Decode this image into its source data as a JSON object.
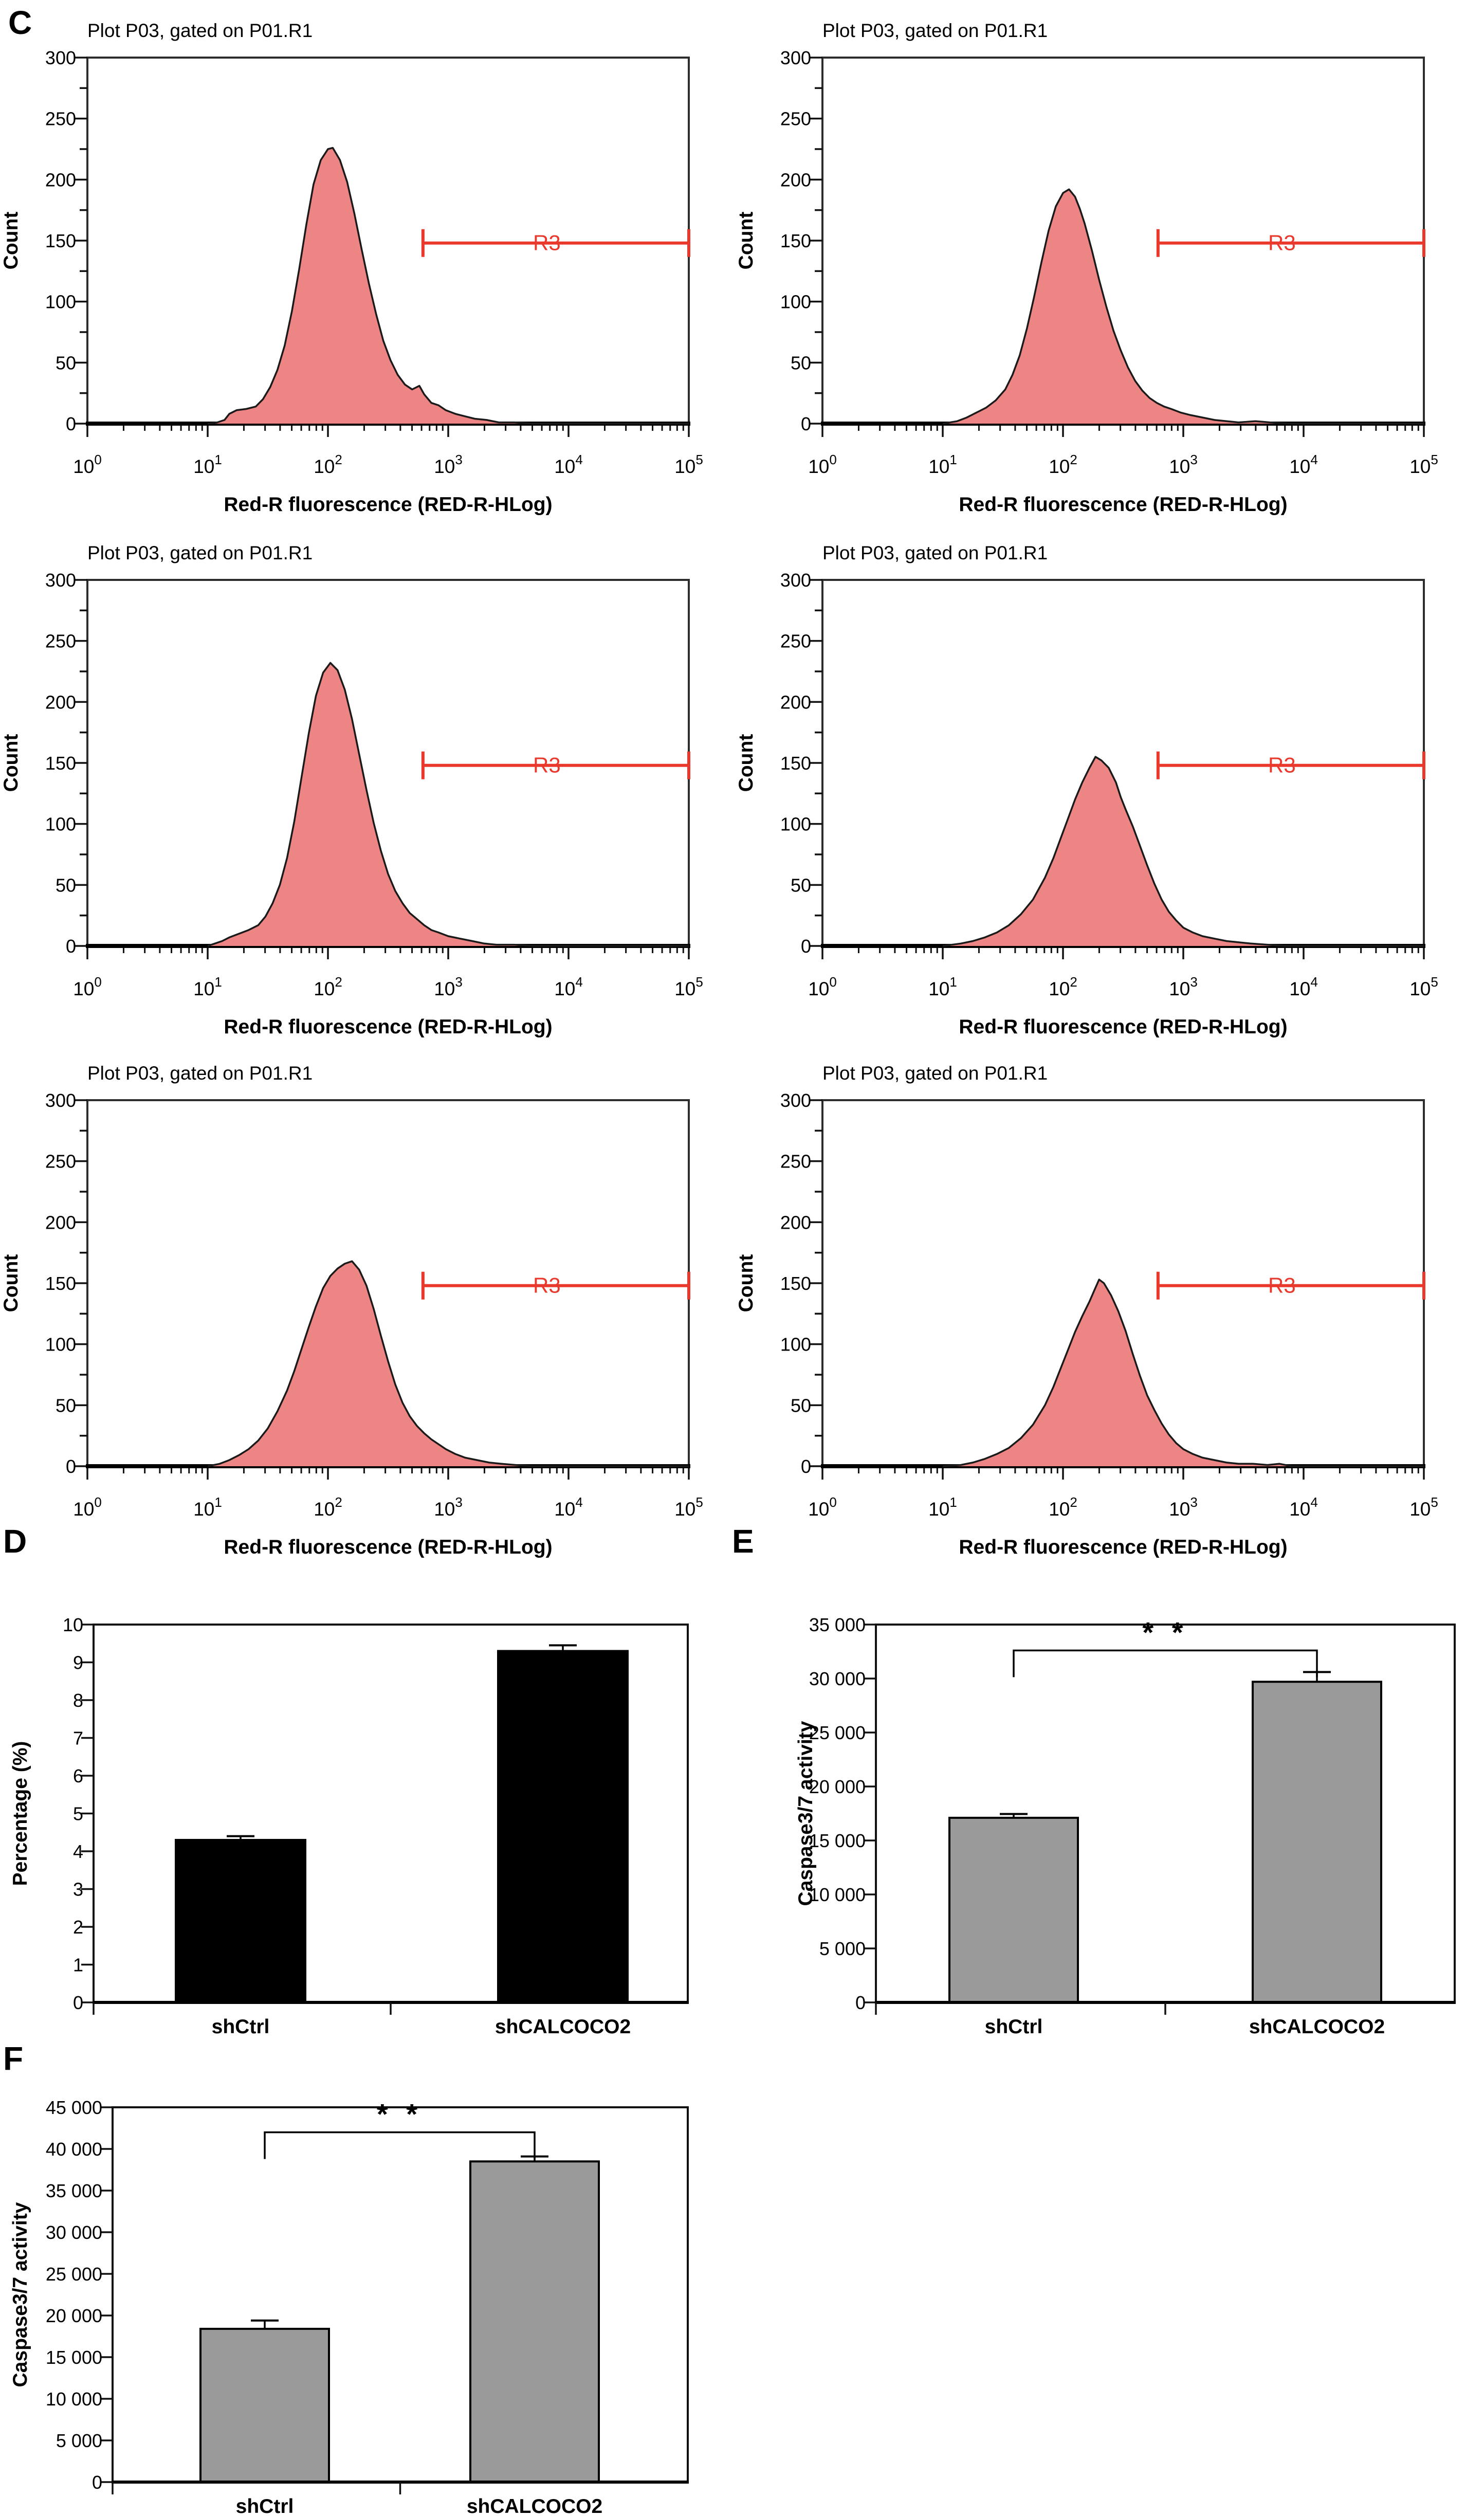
{
  "figure": {
    "panels": {
      "c": "C",
      "d": "D",
      "e": "E",
      "f": "F"
    }
  },
  "chart_data": {
    "flow_histograms": {
      "type": "area",
      "title": "Plot P03, gated on P01.R1",
      "xlabel": "Red-R fluorescence (RED-R-HLog)",
      "ylabel": "Count",
      "ylim": [
        0,
        300
      ],
      "y_tick_step": 50,
      "y_minor_step": 25,
      "x_log_decades": [
        0,
        1,
        2,
        3,
        4,
        5
      ],
      "fill_color": "#ee8585",
      "outline_color": "#1a1a1a",
      "gate": {
        "label": "R3",
        "from_log10": 2.79,
        "to_log10": 5.0,
        "count": 148,
        "label_log10": 3.82,
        "color": "#e9392c"
      },
      "plots": [
        {
          "position": "top-left",
          "peak_log10": 2.02,
          "peak_count": 226,
          "points": [
            [
              1.0,
              0
            ],
            [
              1.08,
              1
            ],
            [
              1.14,
              3
            ],
            [
              1.18,
              8
            ],
            [
              1.24,
              11
            ],
            [
              1.32,
              12
            ],
            [
              1.4,
              14
            ],
            [
              1.46,
              20
            ],
            [
              1.52,
              30
            ],
            [
              1.58,
              44
            ],
            [
              1.64,
              64
            ],
            [
              1.7,
              92
            ],
            [
              1.76,
              126
            ],
            [
              1.82,
              163
            ],
            [
              1.88,
              196
            ],
            [
              1.94,
              216
            ],
            [
              2.0,
              225
            ],
            [
              2.04,
              226
            ],
            [
              2.1,
              216
            ],
            [
              2.16,
              198
            ],
            [
              2.22,
              172
            ],
            [
              2.28,
              143
            ],
            [
              2.34,
              115
            ],
            [
              2.4,
              90
            ],
            [
              2.46,
              68
            ],
            [
              2.52,
              52
            ],
            [
              2.58,
              40
            ],
            [
              2.64,
              32
            ],
            [
              2.7,
              28
            ],
            [
              2.76,
              31
            ],
            [
              2.8,
              24
            ],
            [
              2.86,
              17
            ],
            [
              2.92,
              15
            ],
            [
              2.98,
              11
            ],
            [
              3.06,
              8
            ],
            [
              3.14,
              6
            ],
            [
              3.22,
              4
            ],
            [
              3.32,
              3
            ],
            [
              3.42,
              1
            ],
            [
              3.55,
              1
            ],
            [
              3.7,
              0
            ],
            [
              4.2,
              0
            ],
            [
              5.0,
              0
            ]
          ]
        },
        {
          "position": "top-right",
          "peak_log10": 2.05,
          "peak_count": 192,
          "points": [
            [
              1.0,
              0
            ],
            [
              1.12,
              2
            ],
            [
              1.2,
              5
            ],
            [
              1.28,
              9
            ],
            [
              1.36,
              13
            ],
            [
              1.44,
              19
            ],
            [
              1.52,
              28
            ],
            [
              1.58,
              40
            ],
            [
              1.64,
              56
            ],
            [
              1.7,
              78
            ],
            [
              1.76,
              104
            ],
            [
              1.82,
              132
            ],
            [
              1.88,
              158
            ],
            [
              1.94,
              178
            ],
            [
              2.0,
              189
            ],
            [
              2.05,
              192
            ],
            [
              2.1,
              186
            ],
            [
              2.14,
              176
            ],
            [
              2.18,
              164
            ],
            [
              2.24,
              142
            ],
            [
              2.3,
              118
            ],
            [
              2.36,
              96
            ],
            [
              2.42,
              76
            ],
            [
              2.48,
              60
            ],
            [
              2.54,
              46
            ],
            [
              2.6,
              35
            ],
            [
              2.66,
              27
            ],
            [
              2.72,
              21
            ],
            [
              2.78,
              17
            ],
            [
              2.84,
              14
            ],
            [
              2.9,
              12
            ],
            [
              2.98,
              9
            ],
            [
              3.06,
              7
            ],
            [
              3.16,
              5
            ],
            [
              3.26,
              3
            ],
            [
              3.36,
              2
            ],
            [
              3.46,
              1
            ],
            [
              3.6,
              2
            ],
            [
              3.72,
              1
            ],
            [
              3.9,
              0
            ],
            [
              5.0,
              0
            ]
          ]
        },
        {
          "position": "middle-left",
          "peak_log10": 2.02,
          "peak_count": 232,
          "points": [
            [
              1.0,
              0
            ],
            [
              1.06,
              2
            ],
            [
              1.12,
              4
            ],
            [
              1.18,
              7
            ],
            [
              1.26,
              10
            ],
            [
              1.34,
              13
            ],
            [
              1.42,
              17
            ],
            [
              1.48,
              24
            ],
            [
              1.54,
              35
            ],
            [
              1.6,
              50
            ],
            [
              1.66,
              72
            ],
            [
              1.72,
              102
            ],
            [
              1.78,
              138
            ],
            [
              1.84,
              174
            ],
            [
              1.9,
              205
            ],
            [
              1.96,
              224
            ],
            [
              2.02,
              232
            ],
            [
              2.08,
              226
            ],
            [
              2.14,
              210
            ],
            [
              2.2,
              186
            ],
            [
              2.26,
              157
            ],
            [
              2.32,
              128
            ],
            [
              2.38,
              101
            ],
            [
              2.44,
              78
            ],
            [
              2.5,
              59
            ],
            [
              2.56,
              45
            ],
            [
              2.62,
              35
            ],
            [
              2.68,
              27
            ],
            [
              2.74,
              22
            ],
            [
              2.8,
              17
            ],
            [
              2.86,
              13
            ],
            [
              2.92,
              11
            ],
            [
              3.0,
              8
            ],
            [
              3.1,
              6
            ],
            [
              3.2,
              4
            ],
            [
              3.3,
              2
            ],
            [
              3.4,
              1
            ],
            [
              3.55,
              1
            ],
            [
              3.7,
              0
            ],
            [
              5.0,
              0
            ]
          ]
        },
        {
          "position": "middle-right",
          "peak_log10": 2.27,
          "peak_count": 155,
          "points": [
            [
              1.0,
              0
            ],
            [
              1.15,
              2
            ],
            [
              1.25,
              4
            ],
            [
              1.35,
              7
            ],
            [
              1.45,
              11
            ],
            [
              1.55,
              17
            ],
            [
              1.65,
              26
            ],
            [
              1.75,
              38
            ],
            [
              1.85,
              56
            ],
            [
              1.92,
              72
            ],
            [
              1.98,
              88
            ],
            [
              2.04,
              104
            ],
            [
              2.1,
              120
            ],
            [
              2.16,
              134
            ],
            [
              2.22,
              146
            ],
            [
              2.27,
              155
            ],
            [
              2.32,
              152
            ],
            [
              2.38,
              146
            ],
            [
              2.44,
              134
            ],
            [
              2.48,
              122
            ],
            [
              2.52,
              112
            ],
            [
              2.58,
              98
            ],
            [
              2.64,
              82
            ],
            [
              2.7,
              66
            ],
            [
              2.76,
              51
            ],
            [
              2.82,
              38
            ],
            [
              2.88,
              28
            ],
            [
              2.94,
              21
            ],
            [
              3.0,
              15
            ],
            [
              3.08,
              11
            ],
            [
              3.16,
              8
            ],
            [
              3.26,
              6
            ],
            [
              3.36,
              4
            ],
            [
              3.46,
              3
            ],
            [
              3.56,
              2
            ],
            [
              3.7,
              1
            ],
            [
              3.85,
              0
            ],
            [
              5.0,
              0
            ]
          ]
        },
        {
          "position": "bottom-left",
          "peak_log10": 2.2,
          "peak_count": 168,
          "points": [
            [
              1.0,
              0
            ],
            [
              1.1,
              2
            ],
            [
              1.18,
              5
            ],
            [
              1.26,
              9
            ],
            [
              1.34,
              14
            ],
            [
              1.42,
              21
            ],
            [
              1.5,
              31
            ],
            [
              1.58,
              45
            ],
            [
              1.66,
              62
            ],
            [
              1.72,
              78
            ],
            [
              1.78,
              96
            ],
            [
              1.84,
              114
            ],
            [
              1.9,
              131
            ],
            [
              1.96,
              146
            ],
            [
              2.02,
              156
            ],
            [
              2.08,
              162
            ],
            [
              2.14,
              166
            ],
            [
              2.2,
              168
            ],
            [
              2.26,
              161
            ],
            [
              2.32,
              148
            ],
            [
              2.38,
              129
            ],
            [
              2.44,
              107
            ],
            [
              2.5,
              86
            ],
            [
              2.56,
              67
            ],
            [
              2.62,
              52
            ],
            [
              2.68,
              41
            ],
            [
              2.74,
              33
            ],
            [
              2.8,
              27
            ],
            [
              2.86,
              22
            ],
            [
              2.92,
              18
            ],
            [
              2.98,
              14
            ],
            [
              3.06,
              10
            ],
            [
              3.14,
              7
            ],
            [
              3.24,
              5
            ],
            [
              3.34,
              3
            ],
            [
              3.44,
              2
            ],
            [
              3.56,
              1
            ],
            [
              3.7,
              0
            ],
            [
              5.0,
              0
            ]
          ]
        },
        {
          "position": "bottom-right",
          "peak_log10": 2.3,
          "peak_count": 153,
          "points": [
            [
              1.0,
              0
            ],
            [
              1.15,
              1
            ],
            [
              1.25,
              3
            ],
            [
              1.35,
              6
            ],
            [
              1.45,
              10
            ],
            [
              1.55,
              15
            ],
            [
              1.65,
              23
            ],
            [
              1.75,
              34
            ],
            [
              1.85,
              50
            ],
            [
              1.92,
              65
            ],
            [
              1.98,
              80
            ],
            [
              2.04,
              95
            ],
            [
              2.1,
              110
            ],
            [
              2.16,
              123
            ],
            [
              2.22,
              135
            ],
            [
              2.26,
              144
            ],
            [
              2.3,
              153
            ],
            [
              2.34,
              150
            ],
            [
              2.4,
              140
            ],
            [
              2.46,
              127
            ],
            [
              2.52,
              111
            ],
            [
              2.58,
              92
            ],
            [
              2.64,
              74
            ],
            [
              2.7,
              58
            ],
            [
              2.76,
              46
            ],
            [
              2.82,
              35
            ],
            [
              2.88,
              26
            ],
            [
              2.94,
              19
            ],
            [
              3.0,
              14
            ],
            [
              3.08,
              10
            ],
            [
              3.16,
              7
            ],
            [
              3.26,
              5
            ],
            [
              3.36,
              3
            ],
            [
              3.46,
              2
            ],
            [
              3.58,
              2
            ],
            [
              3.7,
              1
            ],
            [
              3.8,
              2
            ],
            [
              3.9,
              0
            ],
            [
              5.0,
              0
            ]
          ]
        }
      ]
    },
    "bar_charts": [
      {
        "panel": "D",
        "type": "bar",
        "ylabel": "Percentage (%)",
        "categories": [
          "shCtrl",
          "shCALCOCO2"
        ],
        "values": [
          4.3,
          9.3
        ],
        "errors": [
          0.1,
          0.15
        ],
        "ylim": [
          0,
          10
        ],
        "y_tick_labels": [
          "0",
          "1",
          "2",
          "3",
          "4",
          "5",
          "6",
          "7",
          "8",
          "9",
          "10"
        ],
        "bar_color": "#000000",
        "significance": null
      },
      {
        "panel": "E",
        "type": "bar",
        "ylabel": "Caspase3/7 activity",
        "categories": [
          "shCtrl",
          "shCALCOCO2"
        ],
        "values": [
          17100,
          29700
        ],
        "errors": [
          350,
          900
        ],
        "ylim": [
          0,
          35000
        ],
        "y_tick_labels": [
          "0",
          "5 000",
          "10 000",
          "15 000",
          "20 000",
          "25 000",
          "30 000",
          "35 000"
        ],
        "bar_color": "#9a9a9a",
        "significance": {
          "label": "* *",
          "at_value": 32600
        }
      },
      {
        "panel": "F",
        "type": "bar",
        "ylabel": "Caspase3/7 activity",
        "categories": [
          "shCtrl",
          "shCALCOCO2"
        ],
        "values": [
          18400,
          38500
        ],
        "errors": [
          1000,
          600
        ],
        "ylim": [
          0,
          45000
        ],
        "y_tick_labels": [
          "0",
          "5 000",
          "10 000",
          "15 000",
          "20 000",
          "25 000",
          "30 000",
          "35 000",
          "40 000",
          "45 000"
        ],
        "bar_color": "#9a9a9a",
        "significance": {
          "label": "* *",
          "at_value": 42000
        }
      }
    ]
  }
}
